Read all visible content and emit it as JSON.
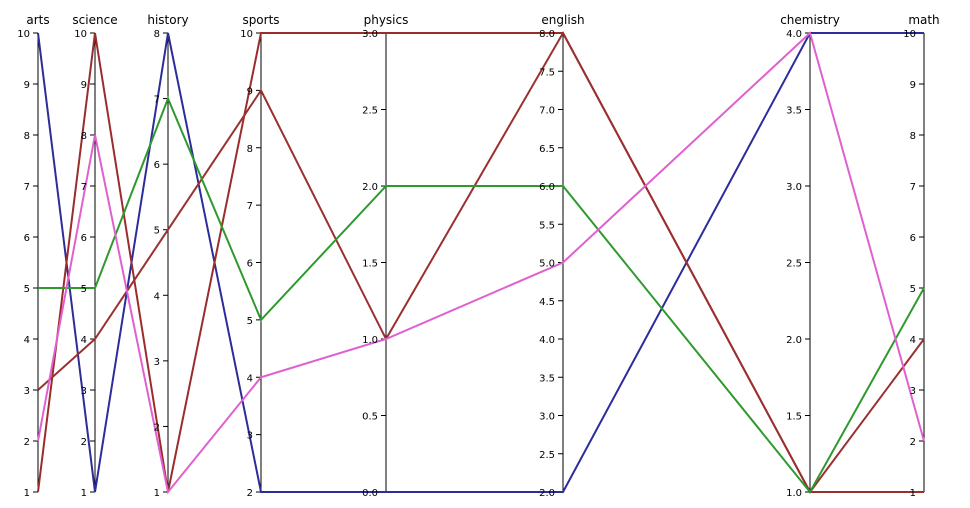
{
  "chart_data": {
    "type": "parallel_coordinates",
    "axes": [
      {
        "name": "arts",
        "label": "arts",
        "range": [
          1,
          10
        ],
        "ticks": [
          "1",
          "2",
          "3",
          "4",
          "5",
          "6",
          "7",
          "8",
          "9",
          "10"
        ]
      },
      {
        "name": "science",
        "label": "science",
        "range": [
          1,
          10
        ],
        "ticks": [
          "1",
          "2",
          "3",
          "4",
          "5",
          "6",
          "7",
          "8",
          "9",
          "10"
        ]
      },
      {
        "name": "history",
        "label": "history",
        "range": [
          1,
          8
        ],
        "ticks": [
          "1",
          "2",
          "3",
          "4",
          "5",
          "6",
          "7",
          "8"
        ]
      },
      {
        "name": "sports",
        "label": "sports",
        "range": [
          2,
          10
        ],
        "ticks": [
          "2",
          "3",
          "4",
          "5",
          "6",
          "7",
          "8",
          "9",
          "10"
        ]
      },
      {
        "name": "physics",
        "label": "physics",
        "range": [
          0,
          3
        ],
        "ticks": [
          "0.0",
          "0.5",
          "1.0",
          "1.5",
          "2.0",
          "2.5",
          "3.0"
        ]
      },
      {
        "name": "english",
        "label": "english",
        "range": [
          2,
          8
        ],
        "ticks": [
          "2.0",
          "2.5",
          "3.0",
          "3.5",
          "4.0",
          "4.5",
          "5.0",
          "5.5",
          "6.0",
          "6.5",
          "7.0",
          "7.5",
          "8.0"
        ]
      },
      {
        "name": "chemistry",
        "label": "chemistry",
        "range": [
          1,
          4
        ],
        "ticks": [
          "1.0",
          "1.5",
          "2.0",
          "2.5",
          "3.0",
          "3.5",
          "4.0"
        ]
      },
      {
        "name": "math",
        "label": "math",
        "range": [
          1,
          10
        ],
        "ticks": [
          "1",
          "2",
          "3",
          "4",
          "5",
          "6",
          "7",
          "8",
          "9",
          "10"
        ]
      }
    ],
    "series": [
      {
        "color": "#2c2c9a",
        "values": [
          10,
          1,
          8,
          2,
          0,
          2,
          4,
          10
        ]
      },
      {
        "color": "#9a2c2c",
        "values": [
          1,
          10,
          1,
          10,
          3,
          8,
          1,
          1
        ]
      },
      {
        "color": "#9a3030",
        "values": [
          3,
          4,
          5,
          9,
          1,
          8,
          1,
          4
        ]
      },
      {
        "color": "#2e9a2e",
        "values": [
          5,
          5,
          7,
          5,
          2,
          6,
          1,
          5
        ]
      },
      {
        "color": "#e060d0",
        "values": [
          2,
          8,
          1,
          4,
          1,
          5,
          4,
          2
        ]
      }
    ]
  }
}
